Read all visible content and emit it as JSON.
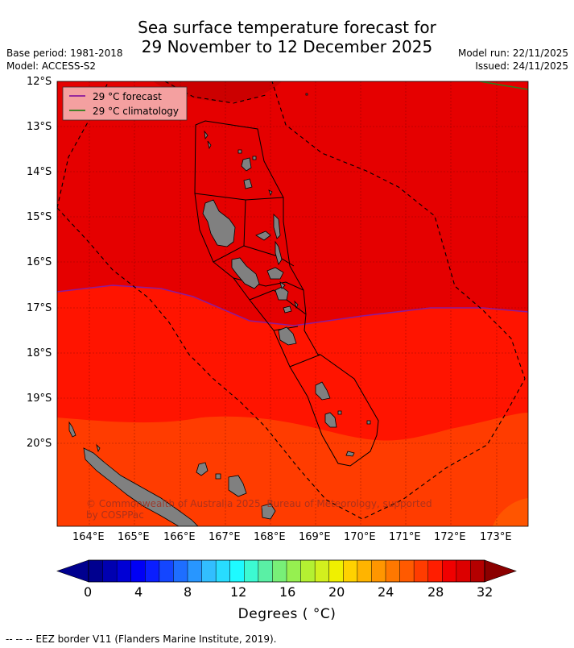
{
  "title": {
    "line1": "Sea surface temperature forecast for",
    "line2": "29 November to 12 December 2025"
  },
  "meta": {
    "base_period": "Base period: 1981-2018",
    "model": "Model: ACCESS-S2",
    "model_run": "Model run: 22/11/2025",
    "issued": "Issued: 24/11/2025"
  },
  "map": {
    "latitude_labels": [
      "12°S",
      "13°S",
      "14°S",
      "15°S",
      "16°S",
      "17°S",
      "18°S",
      "19°S",
      "20°S"
    ],
    "longitude_labels": [
      "164°E",
      "165°E",
      "166°E",
      "167°E",
      "168°E",
      "169°E",
      "170°E",
      "171°E",
      "172°E",
      "173°E"
    ],
    "legend": {
      "forecast_label": "29 °C  forecast",
      "climatology_label": "29 °C  climatology",
      "forecast_color": "#8b1a9c",
      "climatology_color": "#2e7d1a"
    },
    "copyright_line1": "© Commonwealth of Australia 2025, Bureau of Meteorology, supported",
    "copyright_line2": "by COSPPac"
  },
  "colorbar": {
    "tick_labels": [
      "0",
      "4",
      "8",
      "12",
      "16",
      "20",
      "24",
      "28",
      "32"
    ],
    "label": "Degrees ( °C)",
    "colors": [
      "#00008f",
      "#0000b0",
      "#0000d5",
      "#0000f5",
      "#0a1eff",
      "#1446ff",
      "#1e6eff",
      "#2896ff",
      "#32beff",
      "#28dcff",
      "#1efaff",
      "#3cfad2",
      "#5af0a5",
      "#78f078",
      "#96f050",
      "#b4f032",
      "#d2f01e",
      "#f0f000",
      "#ffd200",
      "#ffb400",
      "#ff9600",
      "#ff7800",
      "#ff5a00",
      "#ff3c00",
      "#ff1e00",
      "#f00000",
      "#dc0000",
      "#b40000"
    ],
    "under_color": "#00008f",
    "over_color": "#8b0000"
  },
  "footer": "-- -- -- EEZ border V11 (Flanders Marine Institute, 2019)."
}
